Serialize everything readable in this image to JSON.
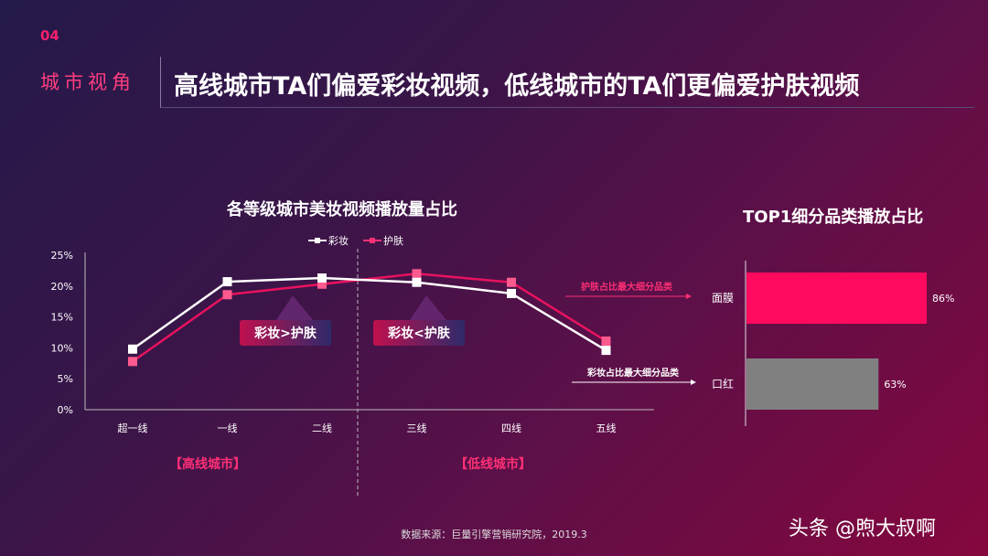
{
  "section": {
    "number": "04",
    "title": "城市视角"
  },
  "headline": "高线城市TA们偏爱彩妆视频，低线城市的TA们更偏爱护肤视频",
  "chart_data": [
    {
      "type": "line",
      "title": "各等级城市美妆视频播放量占比",
      "categories": [
        "超一线",
        "一线",
        "二线",
        "三线",
        "四线",
        "五线"
      ],
      "series": [
        {
          "name": "彩妆",
          "color": "#ffffff",
          "values": [
            9.8,
            20.7,
            21.3,
            20.6,
            18.8,
            9.6
          ]
        },
        {
          "name": "护肤",
          "color": "#ff2f76",
          "values": [
            7.8,
            18.6,
            20.3,
            22.0,
            20.6,
            11.1
          ]
        }
      ],
      "ylim": [
        0,
        25
      ],
      "yticks": [
        "0%",
        "5%",
        "10%",
        "15%",
        "20%",
        "25%"
      ],
      "legend": "top",
      "annotations": [
        "彩妆>护肤",
        "彩妆<护肤"
      ],
      "groups": [
        "【高线城市】",
        "【低线城市】"
      ]
    },
    {
      "type": "bar",
      "orientation": "horizontal",
      "title": "TOP1细分品类播放占比",
      "categories": [
        "面膜",
        "口红"
      ],
      "values": [
        86,
        63
      ],
      "value_labels": [
        "86%",
        "63%"
      ],
      "colors": [
        "#ff0a5e",
        "#808080"
      ],
      "annotations": [
        "护肤占比最大细分品类",
        "彩妆占比最大细分品类"
      ]
    }
  ],
  "source": "数据来源：巨量引擎营销研究院，2019.3",
  "watermark": "头条 @煦大叔啊"
}
